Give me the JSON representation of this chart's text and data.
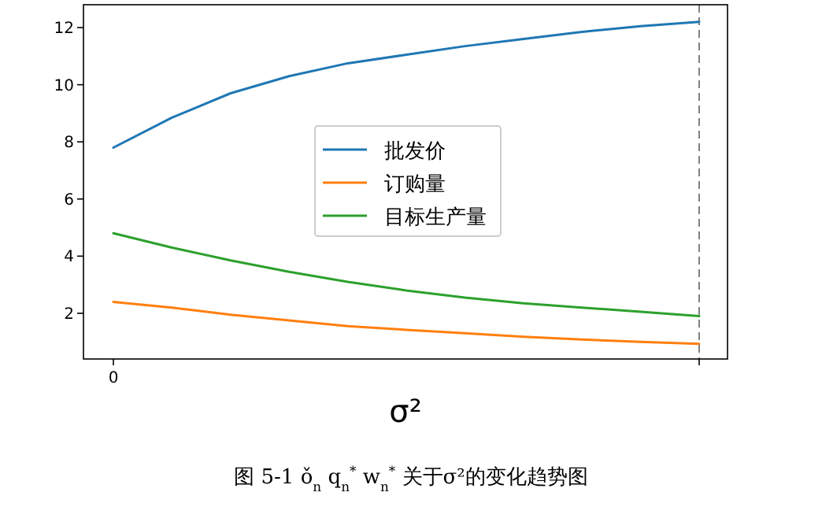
{
  "chart_data": {
    "type": "line",
    "xlabel": "σ²",
    "categories": [
      "0",
      null,
      null,
      null,
      null,
      null,
      null,
      null,
      null,
      null,
      null
    ],
    "series": [
      {
        "name": "批发价",
        "color": "#1f77b4",
        "values": [
          7.8,
          8.85,
          9.7,
          10.3,
          10.75,
          11.05,
          11.35,
          11.6,
          11.85,
          12.05,
          12.2
        ]
      },
      {
        "name": "订购量",
        "color": "#ff7f0e",
        "values": [
          2.4,
          2.2,
          1.95,
          1.75,
          1.55,
          1.42,
          1.3,
          1.18,
          1.08,
          1.0,
          0.93
        ]
      },
      {
        "name": "目标生产量",
        "color": "#2ca02c",
        "values": [
          4.8,
          4.3,
          3.85,
          3.45,
          3.1,
          2.8,
          2.55,
          2.35,
          2.2,
          2.05,
          1.9
        ]
      }
    ],
    "ylim": [
      0.4,
      12.8
    ],
    "yticks": [
      2,
      4,
      6,
      8,
      10,
      12
    ],
    "legend": "center",
    "grid": false,
    "marker": "none",
    "line_style": "solid",
    "annotations": [
      "图 5-1 ǒ$_{n}$ q$_{n}$$^{*}$ w$_{n}$$^{*}$ 关于σ²的变化趋势图"
    ]
  }
}
